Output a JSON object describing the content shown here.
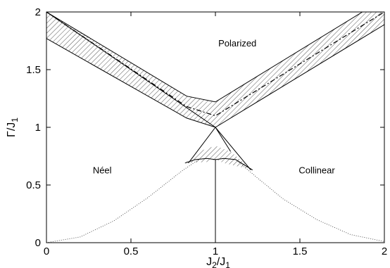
{
  "chart_data": {
    "type": "line",
    "title": "",
    "xlabel_main": "J",
    "xlabel_sub1": "2",
    "xlabel_sep": "/J",
    "xlabel_sub2": "1",
    "ylabel_main": "Γ/J",
    "ylabel_sub": "1",
    "xlim": [
      0,
      2
    ],
    "ylim": [
      0,
      2
    ],
    "x_ticks": [
      0,
      0.5,
      1,
      1.5,
      2
    ],
    "x_tick_labels": [
      "0",
      "0.5",
      "1",
      "1.5",
      "2"
    ],
    "y_ticks": [
      0,
      0.5,
      1,
      1.5,
      2
    ],
    "y_tick_labels": [
      "0",
      "0.5",
      "1",
      "1.5",
      "2"
    ],
    "grid": false,
    "region_labels": [
      {
        "text": "Polarized",
        "x": 1.13,
        "y": 1.7
      },
      {
        "text": "Néel",
        "x": 0.33,
        "y": 0.6
      },
      {
        "text": "Collinear",
        "x": 1.6,
        "y": 0.6
      }
    ],
    "shaded_regions": [
      {
        "name": "upper-band",
        "polygon": [
          [
            0,
            2
          ],
          [
            0.83,
            1.27
          ],
          [
            1,
            1.22
          ],
          [
            1.87,
            2
          ],
          [
            2,
            2
          ],
          [
            2,
            1.89
          ],
          [
            1,
            1.0
          ],
          [
            0.83,
            1.08
          ],
          [
            0,
            1.77
          ]
        ]
      },
      {
        "name": "central-wedge",
        "polygon": [
          [
            0.82,
            0.69
          ],
          [
            0.92,
            0.8
          ],
          [
            1,
            0.84
          ],
          [
            1.09,
            0.79
          ],
          [
            1.22,
            0.63
          ],
          [
            1.05,
            0.69
          ],
          [
            1,
            0.72
          ],
          [
            0.95,
            0.7
          ]
        ]
      }
    ],
    "series": [
      {
        "style": "dash-dot",
        "x": [
          0,
          0.83,
          1,
          2
        ],
        "y": [
          2,
          1.18,
          1.1,
          2
        ]
      },
      {
        "style": "solid",
        "x": [
          0,
          0.83,
          1,
          1.87
        ],
        "y": [
          2,
          1.27,
          1.22,
          2
        ]
      },
      {
        "style": "solid",
        "x": [
          0,
          0.83,
          1,
          2
        ],
        "y": [
          1.77,
          1.08,
          1.0,
          1.89
        ]
      },
      {
        "style": "solid",
        "x": [
          0,
          0.5,
          1,
          1.21
        ],
        "y": [
          2,
          1.5,
          1.0,
          0.63
        ]
      },
      {
        "style": "solid",
        "x": [
          0.84,
          1,
          1.09
        ],
        "y": [
          0.69,
          1.0,
          0.79
        ]
      },
      {
        "style": "solid",
        "x": [
          0.82,
          0.88,
          0.95,
          1,
          1.05,
          1.12,
          1.22
        ],
        "y": [
          0.69,
          0.72,
          0.73,
          0.72,
          0.73,
          0.72,
          0.63
        ]
      },
      {
        "style": "solid",
        "x": [
          1,
          1
        ],
        "y": [
          0,
          0.72
        ]
      },
      {
        "style": "dotted",
        "x": [
          0,
          0.2,
          0.4,
          0.6,
          0.8,
          0.9
        ],
        "y": [
          0,
          0.05,
          0.19,
          0.39,
          0.62,
          0.72
        ]
      },
      {
        "style": "dotted",
        "x": [
          1.12,
          1.25,
          1.4,
          1.6,
          1.8,
          2.0
        ],
        "y": [
          0.72,
          0.56,
          0.38,
          0.2,
          0.07,
          0.01
        ]
      }
    ]
  }
}
